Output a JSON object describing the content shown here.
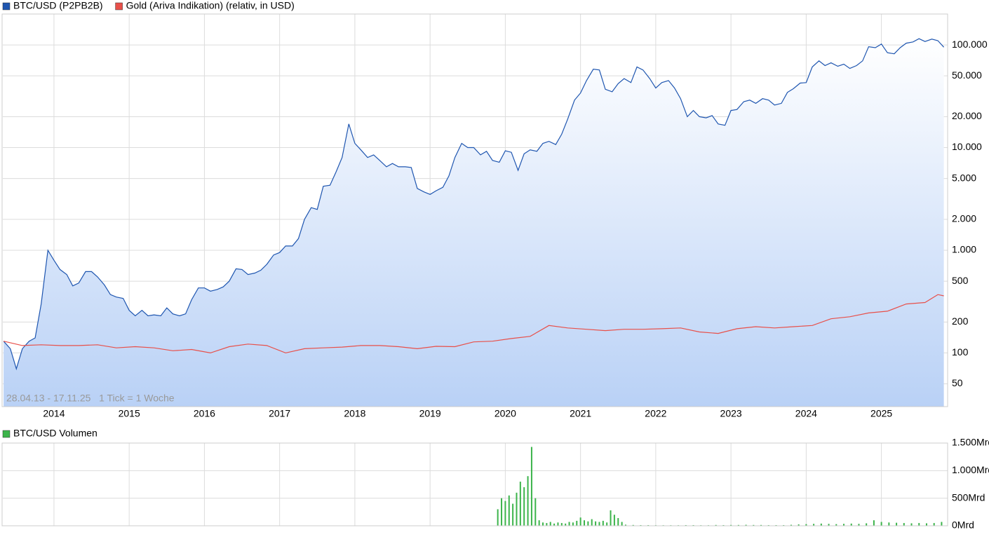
{
  "chart_data": [
    {
      "type": "line",
      "ylog": true,
      "grid": true,
      "note": "28.04.13 - 17.11.25   1 Tick = 1 Woche",
      "xlim": [
        2013.32,
        2025.88
      ],
      "xticks": [
        2014,
        2015,
        2016,
        2017,
        2018,
        2019,
        2020,
        2021,
        2022,
        2023,
        2024,
        2025
      ],
      "ylim": [
        30,
        200000
      ],
      "yticks": [
        50,
        100,
        200,
        500,
        {
          "value": 1000,
          "label": "1.000"
        },
        {
          "value": 2000,
          "label": "2.000"
        },
        {
          "value": 5000,
          "label": "5.000"
        },
        {
          "value": 10000,
          "label": "10.000"
        },
        {
          "value": 20000,
          "label": "20.000"
        },
        {
          "value": 50000,
          "label": "50.000"
        },
        {
          "value": 100000,
          "label": "100.000"
        }
      ],
      "series": [
        {
          "name": "BTC/USD (P2PB2B)",
          "color": "#1f56b0",
          "area": true,
          "x": [
            2013.33,
            2013.42,
            2013.5,
            2013.58,
            2013.67,
            2013.75,
            2013.83,
            2013.92,
            2014,
            2014.08,
            2014.17,
            2014.25,
            2014.33,
            2014.42,
            2014.5,
            2014.58,
            2014.67,
            2014.75,
            2014.83,
            2014.92,
            2015,
            2015.08,
            2015.17,
            2015.25,
            2015.33,
            2015.42,
            2015.5,
            2015.58,
            2015.67,
            2015.75,
            2015.83,
            2015.92,
            2016,
            2016.08,
            2016.17,
            2016.25,
            2016.33,
            2016.42,
            2016.5,
            2016.58,
            2016.67,
            2016.75,
            2016.83,
            2016.92,
            2017,
            2017.08,
            2017.17,
            2017.25,
            2017.33,
            2017.42,
            2017.5,
            2017.58,
            2017.67,
            2017.75,
            2017.83,
            2017.92,
            2018,
            2018.08,
            2018.17,
            2018.25,
            2018.33,
            2018.42,
            2018.5,
            2018.58,
            2018.67,
            2018.75,
            2018.83,
            2018.92,
            2019,
            2019.08,
            2019.17,
            2019.25,
            2019.33,
            2019.42,
            2019.5,
            2019.58,
            2019.67,
            2019.75,
            2019.83,
            2019.92,
            2020,
            2020.08,
            2020.17,
            2020.25,
            2020.33,
            2020.42,
            2020.5,
            2020.58,
            2020.67,
            2020.75,
            2020.83,
            2020.92,
            2021,
            2021.08,
            2021.17,
            2021.25,
            2021.33,
            2021.42,
            2021.5,
            2021.58,
            2021.67,
            2021.75,
            2021.83,
            2021.92,
            2022,
            2022.08,
            2022.17,
            2022.25,
            2022.33,
            2022.42,
            2022.5,
            2022.58,
            2022.67,
            2022.75,
            2022.83,
            2022.92,
            2023,
            2023.08,
            2023.17,
            2023.25,
            2023.33,
            2023.42,
            2023.5,
            2023.58,
            2023.67,
            2023.75,
            2023.83,
            2023.92,
            2024,
            2024.08,
            2024.17,
            2024.25,
            2024.33,
            2024.42,
            2024.5,
            2024.58,
            2024.67,
            2024.75,
            2024.83,
            2024.92,
            2025,
            2025.08,
            2025.17,
            2025.25,
            2025.33,
            2025.42,
            2025.5,
            2025.58,
            2025.67,
            2025.75,
            2025.83
          ],
          "values": [
            130,
            110,
            70,
            110,
            130,
            140,
            300,
            1000,
            800,
            650,
            580,
            450,
            480,
            620,
            620,
            550,
            460,
            370,
            350,
            340,
            260,
            230,
            260,
            230,
            235,
            230,
            275,
            240,
            230,
            240,
            330,
            430,
            430,
            400,
            415,
            440,
            500,
            660,
            650,
            580,
            600,
            640,
            730,
            900,
            950,
            1100,
            1100,
            1300,
            2000,
            2600,
            2500,
            4200,
            4300,
            5800,
            8000,
            17000,
            11000,
            9500,
            8000,
            8500,
            7500,
            6500,
            7000,
            6500,
            6500,
            6400,
            4000,
            3700,
            3500,
            3800,
            4100,
            5300,
            8000,
            11000,
            10000,
            10000,
            8500,
            9200,
            7500,
            7200,
            9300,
            9000,
            6000,
            8700,
            9500,
            9200,
            11000,
            11500,
            10700,
            13500,
            19000,
            29000,
            34000,
            45000,
            58000,
            57000,
            37000,
            35000,
            42000,
            47000,
            43000,
            61000,
            57000,
            47000,
            38000,
            43000,
            45000,
            38000,
            30000,
            20000,
            23000,
            20000,
            19500,
            20500,
            17000,
            16500,
            23000,
            23500,
            28000,
            29000,
            27000,
            30000,
            29000,
            26000,
            27000,
            34500,
            37500,
            42500,
            43000,
            61000,
            70000,
            63000,
            67000,
            62000,
            65000,
            59000,
            63000,
            70000,
            96000,
            94000,
            102000,
            84000,
            82000,
            94000,
            104000,
            107000,
            115000,
            108000,
            114000,
            110000,
            95000
          ]
        },
        {
          "name": "Gold (Ariva Indikation) (relativ, in USD)",
          "color": "#e8504a",
          "x": [
            2013.33,
            2013.58,
            2013.83,
            2014.08,
            2014.33,
            2014.58,
            2014.83,
            2015.08,
            2015.33,
            2015.58,
            2015.83,
            2016.08,
            2016.33,
            2016.58,
            2016.83,
            2017.08,
            2017.33,
            2017.58,
            2017.83,
            2018.08,
            2018.33,
            2018.58,
            2018.83,
            2019.08,
            2019.33,
            2019.58,
            2019.83,
            2020.08,
            2020.33,
            2020.58,
            2020.83,
            2021.08,
            2021.33,
            2021.58,
            2021.83,
            2022.08,
            2022.33,
            2022.58,
            2022.83,
            2023.08,
            2023.33,
            2023.58,
            2023.83,
            2024.08,
            2024.33,
            2024.58,
            2024.83,
            2025.08,
            2025.33,
            2025.58,
            2025.75,
            2025.83
          ],
          "values": [
            130,
            118,
            120,
            118,
            118,
            120,
            112,
            115,
            112,
            105,
            108,
            100,
            115,
            122,
            118,
            100,
            110,
            112,
            114,
            118,
            118,
            115,
            110,
            116,
            115,
            128,
            130,
            138,
            145,
            185,
            175,
            170,
            165,
            170,
            170,
            172,
            175,
            160,
            155,
            172,
            180,
            175,
            180,
            185,
            215,
            225,
            245,
            255,
            300,
            310,
            370,
            360
          ]
        }
      ]
    },
    {
      "type": "bar",
      "grid": true,
      "xlim": [
        2013.32,
        2025.88
      ],
      "xticks": [
        2014,
        2015,
        2016,
        2017,
        2018,
        2019,
        2020,
        2021,
        2022,
        2023,
        2024,
        2025
      ],
      "ylim": [
        0,
        1500
      ],
      "yticks": [
        {
          "value": 0,
          "label": "0Mrd"
        },
        {
          "value": 500,
          "label": "500Mrd"
        },
        {
          "value": 1000,
          "label": "1.000Mrd"
        },
        {
          "value": 1500,
          "label": "1.500Mrd"
        }
      ],
      "series": [
        {
          "name": "BTC/USD Volumen",
          "color": "#3cb44b",
          "x": [
            2019.9,
            2019.95,
            2020,
            2020.05,
            2020.1,
            2020.15,
            2020.2,
            2020.25,
            2020.3,
            2020.35,
            2020.4,
            2020.45,
            2020.5,
            2020.55,
            2020.6,
            2020.65,
            2020.7,
            2020.75,
            2020.8,
            2020.85,
            2020.9,
            2020.95,
            2021,
            2021.05,
            2021.1,
            2021.15,
            2021.2,
            2021.25,
            2021.3,
            2021.35,
            2021.4,
            2021.45,
            2021.5,
            2021.55,
            2021.6,
            2021.7,
            2021.8,
            2021.9,
            2022,
            2022.1,
            2022.2,
            2022.3,
            2022.4,
            2022.5,
            2022.6,
            2022.7,
            2022.8,
            2022.9,
            2023,
            2023.1,
            2023.2,
            2023.3,
            2023.4,
            2023.5,
            2023.6,
            2023.7,
            2023.8,
            2023.9,
            2024,
            2024.1,
            2024.2,
            2024.3,
            2024.4,
            2024.5,
            2024.6,
            2024.7,
            2024.8,
            2024.9,
            2025,
            2025.1,
            2025.2,
            2025.3,
            2025.4,
            2025.5,
            2025.6,
            2025.7,
            2025.8
          ],
          "values": [
            300,
            500,
            450,
            550,
            400,
            600,
            800,
            700,
            900,
            1430,
            500,
            100,
            60,
            50,
            70,
            40,
            60,
            50,
            40,
            70,
            60,
            90,
            150,
            100,
            80,
            120,
            80,
            70,
            90,
            60,
            280,
            200,
            140,
            70,
            20,
            15,
            12,
            12,
            10,
            10,
            10,
            10,
            12,
            12,
            10,
            10,
            15,
            12,
            15,
            15,
            18,
            15,
            15,
            12,
            12,
            12,
            18,
            25,
            30,
            35,
            40,
            35,
            30,
            35,
            40,
            35,
            45,
            100,
            70,
            60,
            55,
            50,
            45,
            50,
            45,
            50,
            70
          ]
        }
      ]
    }
  ]
}
